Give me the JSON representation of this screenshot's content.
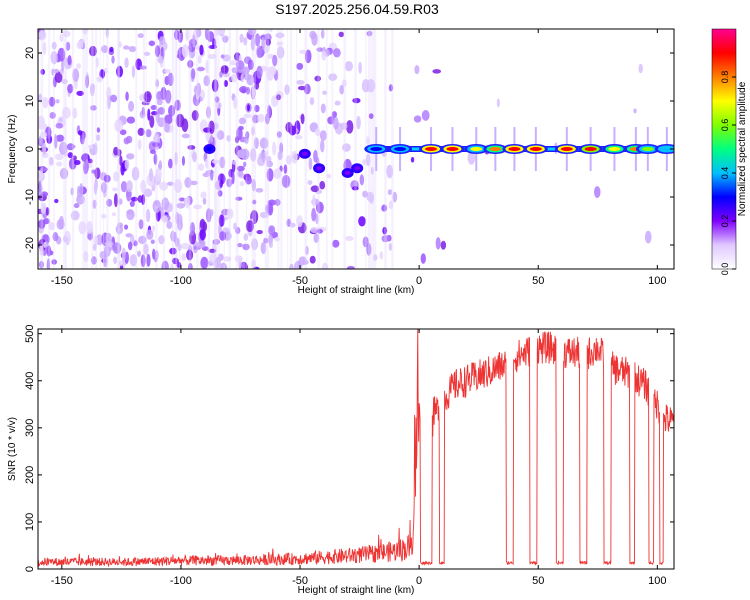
{
  "title": "S197.2025.256.04.59.R03",
  "chart_data": [
    {
      "type": "heatmap",
      "title": "",
      "xlabel": "Height of straight line (km)",
      "ylabel": "Frequency (Hz)",
      "xlim": [
        -160,
        107
      ],
      "ylim": [
        -25,
        25
      ],
      "xticks": [
        -150,
        -100,
        -50,
        0,
        50,
        100
      ],
      "xtick_labels": [
        "-150",
        "-100",
        "-50",
        "0",
        "50",
        "100"
      ],
      "yticks": [
        -20,
        -10,
        0,
        10,
        20
      ],
      "ytick_labels": [
        "-20",
        "-10",
        "0",
        "10",
        "20"
      ],
      "colorbar": {
        "label": "Normalized spectral amplitude",
        "range": [
          0.0,
          1.0
        ],
        "ticks": [
          0.0,
          0.2,
          0.4,
          0.6,
          0.8
        ],
        "tick_labels": [
          "0.0",
          "0.2",
          "0.4",
          "0.6",
          "0.8"
        ],
        "colors": [
          "#ffffff",
          "#e0c8ff",
          "#8000ff",
          "#0000ff",
          "#00c0ff",
          "#00ff80",
          "#80ff00",
          "#ffff00",
          "#ff8000",
          "#ff0000",
          "#ff0090"
        ]
      },
      "carrier_line": {
        "frequency_hz": 0,
        "peaks": [
          {
            "x": -18,
            "amplitude": 0.25
          },
          {
            "x": -8,
            "amplitude": 0.3
          },
          {
            "x": 5,
            "amplitude": 0.9
          },
          {
            "x": 14,
            "amplitude": 0.9
          },
          {
            "x": 24,
            "amplitude": 0.65
          },
          {
            "x": 32,
            "amplitude": 0.75
          },
          {
            "x": 40,
            "amplitude": 0.9
          },
          {
            "x": 49,
            "amplitude": 0.9
          },
          {
            "x": 62,
            "amplitude": 0.9
          },
          {
            "x": 72,
            "amplitude": 0.85
          },
          {
            "x": 82,
            "amplitude": 0.7
          },
          {
            "x": 91,
            "amplitude": 0.75
          },
          {
            "x": 96,
            "amplitude": 0.55
          },
          {
            "x": 104,
            "amplitude": 0.4
          }
        ]
      }
    },
    {
      "type": "line",
      "title": "",
      "xlabel": "Height of straight line (km)",
      "ylabel": "SNR (10 * v/v)",
      "xlim": [
        -160,
        107
      ],
      "ylim": [
        0,
        510
      ],
      "xticks": [
        -150,
        -100,
        -50,
        0,
        50,
        100
      ],
      "xtick_labels": [
        "-150",
        "-100",
        "-50",
        "0",
        "50",
        "100"
      ],
      "yticks": [
        0,
        100,
        200,
        300,
        400,
        500
      ],
      "ytick_labels": [
        "0",
        "100",
        "200",
        "300",
        "400",
        "500"
      ],
      "line_color": "#ee3333",
      "x": [
        -160,
        -140,
        -120,
        -100,
        -80,
        -60,
        -50,
        -40,
        -30,
        -20,
        -10,
        -5,
        -3,
        -1,
        2,
        4,
        6,
        8,
        10,
        15,
        20,
        30,
        38,
        40,
        45,
        50,
        55,
        60,
        65,
        70,
        75,
        80,
        85,
        90,
        95,
        100,
        103,
        107
      ],
      "y": [
        15,
        15,
        15,
        18,
        18,
        20,
        22,
        25,
        28,
        32,
        38,
        45,
        50,
        360,
        300,
        220,
        330,
        340,
        360,
        390,
        400,
        420,
        440,
        450,
        460,
        470,
        470,
        460,
        460,
        455,
        470,
        430,
        420,
        410,
        390,
        350,
        320,
        310
      ],
      "dropouts": [
        {
          "start": 0.5,
          "end": 5.5,
          "value": 10
        },
        {
          "start": 8.5,
          "end": 10.5,
          "value": 10
        },
        {
          "start": 36.5,
          "end": 39.5,
          "value": 10
        },
        {
          "start": 46.5,
          "end": 49.5,
          "value": 10
        },
        {
          "start": 57.5,
          "end": 60.5,
          "value": 10
        },
        {
          "start": 67.5,
          "end": 70.5,
          "value": 10
        },
        {
          "start": 77.5,
          "end": 80.5,
          "value": 10
        },
        {
          "start": 88.5,
          "end": 90.5,
          "value": 10
        },
        {
          "start": 96.5,
          "end": 98.5,
          "value": 10
        },
        {
          "start": 101,
          "end": 102.5,
          "value": 10
        }
      ]
    }
  ]
}
